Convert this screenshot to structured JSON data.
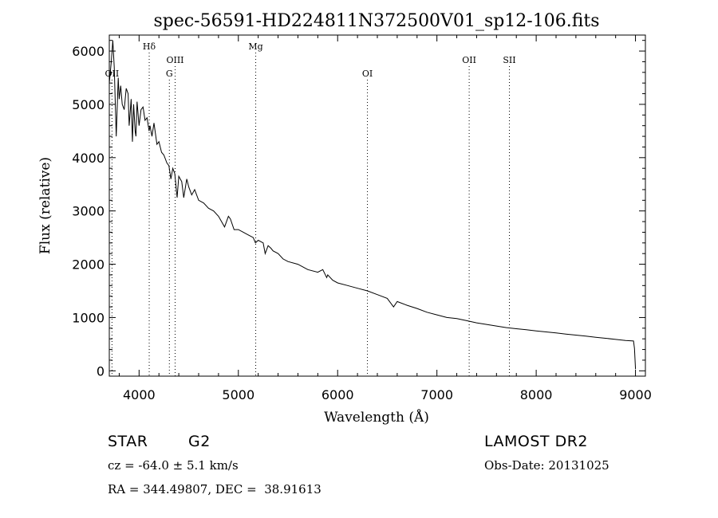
{
  "chart_data": {
    "type": "line",
    "title": "spec-56591-HD224811N372500V01_sp12-106.fits",
    "xlabel": "Wavelength (Å)",
    "ylabel": "Flux (relative)",
    "xlim": [
      3700,
      9100
    ],
    "ylim": [
      -100,
      6300
    ],
    "xticks": [
      "4000",
      "5000",
      "6000",
      "7000",
      "8000",
      "9000"
    ],
    "yticks": [
      "0",
      "1000",
      "2000",
      "3000",
      "4000",
      "5000",
      "6000"
    ],
    "grid": false,
    "series": [
      {
        "x": [
          3700,
          3720,
          3735,
          3750,
          3770,
          3790,
          3800,
          3815,
          3830,
          3850,
          3870,
          3890,
          3900,
          3920,
          3933,
          3945,
          3960,
          3968,
          3980,
          4000,
          4020,
          4040,
          4060,
          4080,
          4101,
          4110,
          4130,
          4150,
          4180,
          4200,
          4226,
          4250,
          4280,
          4300,
          4320,
          4340,
          4360,
          4383,
          4400,
          4430,
          4450,
          4480,
          4500,
          4530,
          4560,
          4600,
          4650,
          4700,
          4750,
          4800,
          4861,
          4900,
          4920,
          4957,
          5000,
          5050,
          5100,
          5150,
          5172,
          5200,
          5250,
          5270,
          5300,
          5328,
          5350,
          5400,
          5450,
          5500,
          5600,
          5700,
          5800,
          5850,
          5890,
          5900,
          5950,
          6000,
          6100,
          6200,
          6300,
          6400,
          6500,
          6563,
          6600,
          6700,
          6800,
          6900,
          7000,
          7100,
          7200,
          7300,
          7400,
          7500,
          7600,
          7700,
          7800,
          7900,
          8000,
          8100,
          8200,
          8300,
          8400,
          8500,
          8600,
          8700,
          8800,
          8900,
          8980,
          8990,
          9000
        ],
        "values": [
          5400,
          5800,
          6200,
          5700,
          4400,
          5500,
          5100,
          5350,
          5000,
          4900,
          5300,
          5200,
          4600,
          5100,
          4300,
          5000,
          4500,
          4400,
          5050,
          4600,
          4900,
          4950,
          4700,
          4750,
          4500,
          4600,
          4400,
          4650,
          4250,
          4300,
          4100,
          4050,
          3900,
          3850,
          3600,
          3800,
          3700,
          3250,
          3650,
          3550,
          3250,
          3600,
          3450,
          3300,
          3400,
          3200,
          3150,
          3050,
          3000,
          2900,
          2700,
          2900,
          2850,
          2650,
          2650,
          2600,
          2550,
          2500,
          2400,
          2450,
          2400,
          2200,
          2350,
          2300,
          2250,
          2200,
          2100,
          2050,
          2000,
          1900,
          1850,
          1900,
          1750,
          1800,
          1700,
          1650,
          1600,
          1550,
          1500,
          1430,
          1360,
          1200,
          1300,
          1230,
          1170,
          1100,
          1050,
          1000,
          980,
          940,
          900,
          870,
          840,
          810,
          790,
          770,
          750,
          730,
          710,
          690,
          670,
          650,
          630,
          610,
          590,
          570,
          560,
          420,
          30
        ]
      }
    ],
    "line_markers": [
      {
        "label": "OII",
        "x": 3727,
        "row": 2
      },
      {
        "label": "Hδ",
        "x": 4102,
        "row": 0
      },
      {
        "label": "G",
        "x": 4305,
        "row": 2
      },
      {
        "label": "OIII",
        "x": 4363,
        "row": 1
      },
      {
        "label": "Mg",
        "x": 5175,
        "row": 0
      },
      {
        "label": "OI",
        "x": 6300,
        "row": 2
      },
      {
        "label": "OII",
        "x": 7325,
        "row": 1
      },
      {
        "label": "SII",
        "x": 7730,
        "row": 1
      }
    ]
  },
  "info": {
    "object_type": "STAR",
    "subclass": "G2",
    "survey": "LAMOST DR2",
    "cz": "cz = -64.0 ± 5.1 km/s",
    "obs_date": "Obs-Date: 20131025",
    "coords": "RA = 344.49807, DEC =  38.91613"
  }
}
